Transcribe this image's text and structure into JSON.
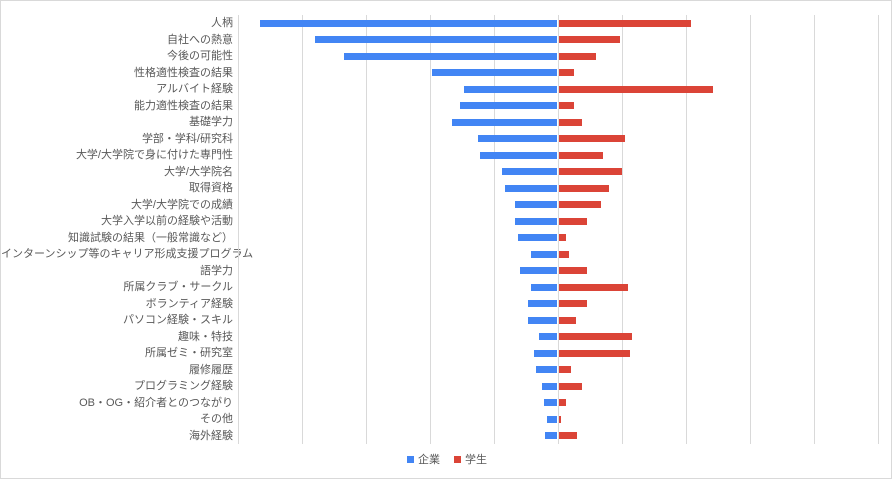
{
  "chart_data": {
    "type": "bar",
    "orientation": "horizontal-diverging",
    "title": "",
    "xlabel": "",
    "ylabel": "",
    "axis_value_labels_visible": false,
    "xlim": [
      -100,
      100
    ],
    "gridline_step": 20,
    "grid": "vertical-only",
    "gridline_color": "#d9d9d9",
    "background_color": "#ffffff",
    "border_color": "#d9d9d9",
    "label_text_color": "#595959",
    "legend_position": "bottom-center",
    "categories": [
      "人柄",
      "自社への熱意",
      "今後の可能性",
      "性格適性検査の結果",
      "アルバイト経験",
      "能力適性検査の結果",
      "基礎学力",
      "学部・学科/研究科",
      "大学/大学院で身に付けた専門性",
      "大学/大学院名",
      "取得資格",
      "大学/大学院での成績",
      "大学入学以前の経験や活動",
      "知識試験の結果（一般常識など）",
      "インターンシップ等のキャリア形成支援プログラム",
      "語学力",
      "所属クラブ・サークル",
      "ボランティア経験",
      "パソコン経験・スキル",
      "趣味・特技",
      "所属ゼミ・研究室",
      "履修履歴",
      "プログラミング経験",
      "OB・OG・紹介者とのつながり",
      "その他",
      "海外経験"
    ],
    "series": [
      {
        "name": "企業",
        "side": "left",
        "color": "#4285f4",
        "values": [
          93,
          76,
          67,
          39.5,
          29.5,
          30.5,
          33,
          25,
          24.5,
          17.5,
          16.5,
          13.5,
          13.5,
          12.5,
          8.5,
          12,
          8.5,
          9.5,
          9.5,
          6,
          7.5,
          7,
          5,
          4.5,
          3.5,
          4
        ]
      },
      {
        "name": "学生",
        "side": "right",
        "color": "#db4437",
        "values": [
          41.5,
          19.5,
          12,
          5,
          48.5,
          5,
          7.5,
          21,
          14,
          20,
          16,
          13.5,
          9,
          2.5,
          3.5,
          9,
          22,
          9,
          5.5,
          23,
          22.5,
          4,
          7.5,
          2.5,
          1,
          6
        ]
      }
    ]
  }
}
